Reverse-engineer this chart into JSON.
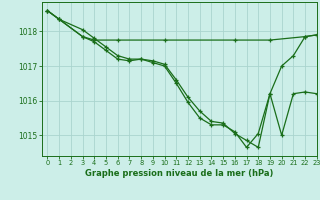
{
  "title": "Graphe pression niveau de la mer (hPa)",
  "bg_color": "#cceee8",
  "grid_color": "#aad4ce",
  "line_color": "#1a6e1a",
  "xlim": [
    -0.5,
    23
  ],
  "ylim": [
    1014.4,
    1018.85
  ],
  "yticks": [
    1015,
    1016,
    1017,
    1018
  ],
  "xticks": [
    0,
    1,
    2,
    3,
    4,
    5,
    6,
    7,
    8,
    9,
    10,
    11,
    12,
    13,
    14,
    15,
    16,
    17,
    18,
    19,
    20,
    21,
    22,
    23
  ],
  "series": [
    {
      "x": [
        0,
        1,
        3,
        4,
        6,
        10,
        16,
        19,
        22,
        23
      ],
      "y": [
        1018.6,
        1018.35,
        1017.85,
        1017.75,
        1017.75,
        1017.75,
        1017.75,
        1017.75,
        1017.85,
        1017.9
      ]
    },
    {
      "x": [
        0,
        1,
        3,
        4,
        5,
        6,
        7,
        8,
        9,
        10,
        11,
        12,
        13,
        14,
        15,
        16,
        17,
        18,
        19,
        20,
        21,
        22,
        23
      ],
      "y": [
        1018.6,
        1018.35,
        1018.05,
        1017.8,
        1017.55,
        1017.3,
        1017.2,
        1017.2,
        1017.15,
        1017.05,
        1016.6,
        1016.1,
        1015.7,
        1015.4,
        1015.35,
        1015.05,
        1014.85,
        1014.65,
        1016.2,
        1017.0,
        1017.3,
        1017.85,
        1017.9
      ]
    },
    {
      "x": [
        0,
        1,
        3,
        4,
        5,
        6,
        7,
        8,
        9,
        10,
        11,
        12,
        13,
        14,
        15,
        16,
        17,
        18,
        19,
        20,
        21,
        22,
        23
      ],
      "y": [
        1018.6,
        1018.35,
        1017.85,
        1017.7,
        1017.45,
        1017.2,
        1017.15,
        1017.2,
        1017.1,
        1017.0,
        1016.5,
        1015.95,
        1015.5,
        1015.3,
        1015.3,
        1015.1,
        1014.65,
        1015.05,
        1016.2,
        1015.0,
        1016.2,
        1016.25,
        1016.2
      ]
    }
  ]
}
